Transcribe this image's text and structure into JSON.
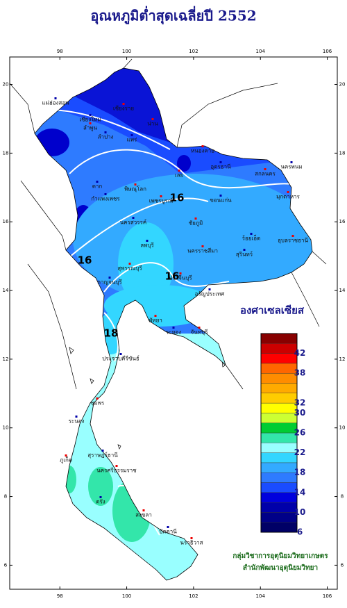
{
  "title": "อุณหภูมิต่ำสุดเฉลี่ยปี 2552",
  "map": {
    "xlim": [
      96.5,
      106.3
    ],
    "ylim": [
      5.3,
      20.8
    ],
    "xticks": [
      98,
      100,
      102,
      104,
      106
    ],
    "yticks": [
      6,
      8,
      10,
      12,
      14,
      16,
      18,
      20
    ]
  },
  "contour_labels": [
    "16",
    "16",
    "16",
    "18"
  ],
  "places": [
    "แม่ฮ่องสอน",
    "เชียงราย",
    "เชียงใหม่",
    "ลำพูน",
    "ลำปาง",
    "น่าน",
    "แพร่",
    "หนองคาย",
    "อุดรธานี",
    "สกลนคร",
    "นครพนม",
    "เลย",
    "ขอนแก่น",
    "มุกดาหาร",
    "ตาก",
    "พิษณุโลก",
    "กำแพงเพชร",
    "เพชรบูรณ์",
    "นครสวรรค์",
    "ชัยภูมิ",
    "ร้อยเอ็ด",
    "อุบลราชธานี",
    "ลพบุรี",
    "นครราชสีมา",
    "สุรินทร์",
    "สุพรรณบุรี",
    "กาญจนบุรี",
    "ปราจีนบุรี",
    "อรัญประเทศ",
    "พัทยา",
    "ระยอง",
    "จันทบุรี",
    "ประจวบคีรีขันธ์",
    "ชุมพร",
    "ระนอง",
    "ภูเก็ต",
    "สุราษฎร์ธานี",
    "นครศรีธรรมราช",
    "ตรัง",
    "สงขลา",
    "ปัตตานี",
    "นราธิวาส"
  ],
  "legend": {
    "title": "องศาเซลเซียส",
    "lim": [
      6,
      46
    ],
    "colors": [
      "#000066",
      "#000088",
      "#0000aa",
      "#0000dd",
      "#1a4cff",
      "#2e7bff",
      "#33aaff",
      "#33d6ff",
      "#99ffff",
      "#33e6aa",
      "#00cc33",
      "#ccff33",
      "#ffff00",
      "#ffcc00",
      "#ffaa00",
      "#ff8c00",
      "#ff6600",
      "#ff0000",
      "#cc0000",
      "#880000"
    ],
    "ticks": [
      42,
      38,
      32,
      30,
      26,
      22,
      18,
      14,
      10,
      6
    ]
  },
  "credits": [
    "กลุ่มวิชาการอุตุนิยมวิทยาเกษตร",
    "สำนักพัฒนาอุตุนิยมวิทยา"
  ]
}
